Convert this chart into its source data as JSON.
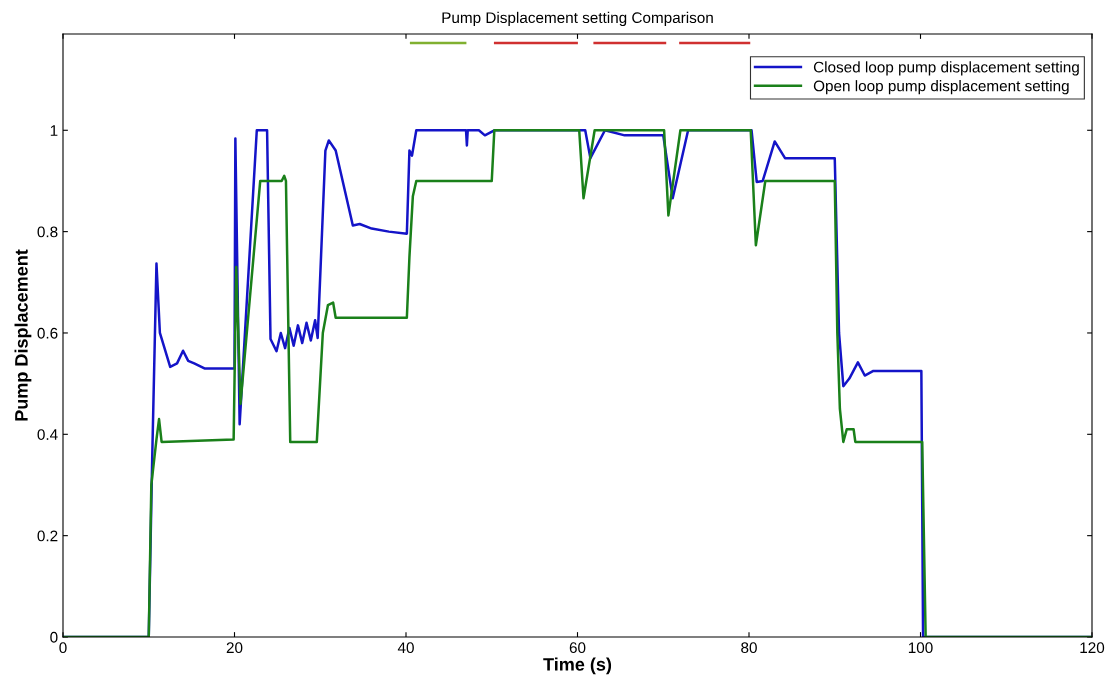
{
  "chart_data": {
    "type": "line",
    "title": "Pump Displacement setting Comparison",
    "xlabel": "Time (s)",
    "ylabel": "Pump Displacement",
    "xlim": [
      0,
      120
    ],
    "xticks": [
      0,
      20,
      40,
      60,
      80,
      100,
      120
    ],
    "ylim": [
      0,
      1.19
    ],
    "yticks": [
      0,
      0.2,
      0.4,
      0.6,
      0.8,
      1
    ],
    "grid": false,
    "legend": "top right",
    "line_style": "solid",
    "marker": "none",
    "series": [
      {
        "name": "Closed loop pump displacement setting",
        "color": "#1414c8",
        "x": [
          0,
          10.0,
          10.4,
          10.9,
          11.3,
          12.5,
          13.3,
          14.0,
          14.6,
          15.3,
          16.5,
          20.0,
          20.1,
          20.6,
          22.6,
          23.8,
          24.2,
          24.9,
          25.4,
          25.9,
          26.4,
          26.9,
          27.4,
          27.9,
          28.4,
          28.9,
          29.4,
          29.7,
          30.6,
          31.0,
          31.8,
          33.8,
          34.6,
          36.0,
          38.0,
          40.1,
          40.4,
          40.7,
          41.2,
          47.0,
          47.1,
          47.2,
          48.5,
          49.2,
          50.3,
          60.9,
          61.5,
          63.2,
          65.5,
          70.0,
          71.1,
          72.9,
          80.3,
          80.9,
          81.6,
          83.0,
          84.2,
          90.0,
          90.5,
          91.0,
          91.7,
          92.7,
          93.5,
          94.5,
          100.1,
          100.3,
          120
        ],
        "values": [
          0,
          0,
          0.35,
          0.737,
          0.6,
          0.533,
          0.54,
          0.565,
          0.545,
          0.54,
          0.53,
          0.53,
          0.984,
          0.42,
          1.0,
          1.0,
          0.588,
          0.564,
          0.6,
          0.57,
          0.61,
          0.575,
          0.615,
          0.58,
          0.62,
          0.585,
          0.625,
          0.59,
          0.96,
          0.98,
          0.96,
          0.812,
          0.815,
          0.806,
          0.8,
          0.796,
          0.96,
          0.95,
          1.0,
          1.0,
          0.97,
          1.0,
          1.0,
          0.99,
          1.0,
          1.0,
          0.945,
          1.0,
          0.99,
          0.99,
          0.866,
          1.0,
          1.0,
          0.898,
          0.9,
          0.978,
          0.945,
          0.945,
          0.6,
          0.495,
          0.51,
          0.542,
          0.516,
          0.525,
          0.525,
          0,
          0
        ]
      },
      {
        "name": "Open loop pump displacement setting",
        "color": "#1a801a",
        "x": [
          0,
          10.0,
          10.3,
          10.9,
          11.2,
          11.5,
          19.9,
          20.2,
          20.7,
          23.0,
          25.5,
          25.8,
          26.0,
          26.5,
          29.6,
          30.3,
          30.9,
          31.5,
          31.8,
          40.1,
          40.4,
          40.8,
          41.2,
          50.0,
          50.3,
          60.2,
          60.7,
          62.0,
          70.1,
          70.6,
          72.0,
          80.2,
          80.8,
          81.9,
          90.0,
          90.3,
          90.6,
          91.0,
          91.4,
          92.2,
          92.4,
          100.2,
          100.6,
          120
        ],
        "values": [
          0,
          0,
          0.3,
          0.39,
          0.43,
          0.385,
          0.39,
          0.73,
          0.46,
          0.9,
          0.9,
          0.91,
          0.9,
          0.385,
          0.385,
          0.6,
          0.655,
          0.66,
          0.63,
          0.63,
          0.75,
          0.87,
          0.9,
          0.9,
          1.0,
          1.0,
          0.866,
          1.0,
          1.0,
          0.832,
          1.0,
          1.0,
          0.773,
          0.9,
          0.9,
          0.6,
          0.45,
          0.385,
          0.41,
          0.41,
          0.385,
          0.385,
          0,
          0
        ]
      },
      {
        "color": "#80b030",
        "x": [
          40.6,
          46.9
        ],
        "values": [
          1.172,
          1.172
        ]
      },
      {
        "color": "#d03030",
        "x": [
          50.4,
          59.9,
          61.0,
          62.0,
          70.2,
          71.0,
          72.0,
          80.0
        ],
        "values": [
          1.172,
          1.172,
          null,
          1.172,
          1.172,
          null,
          1.172,
          1.172
        ]
      }
    ]
  }
}
